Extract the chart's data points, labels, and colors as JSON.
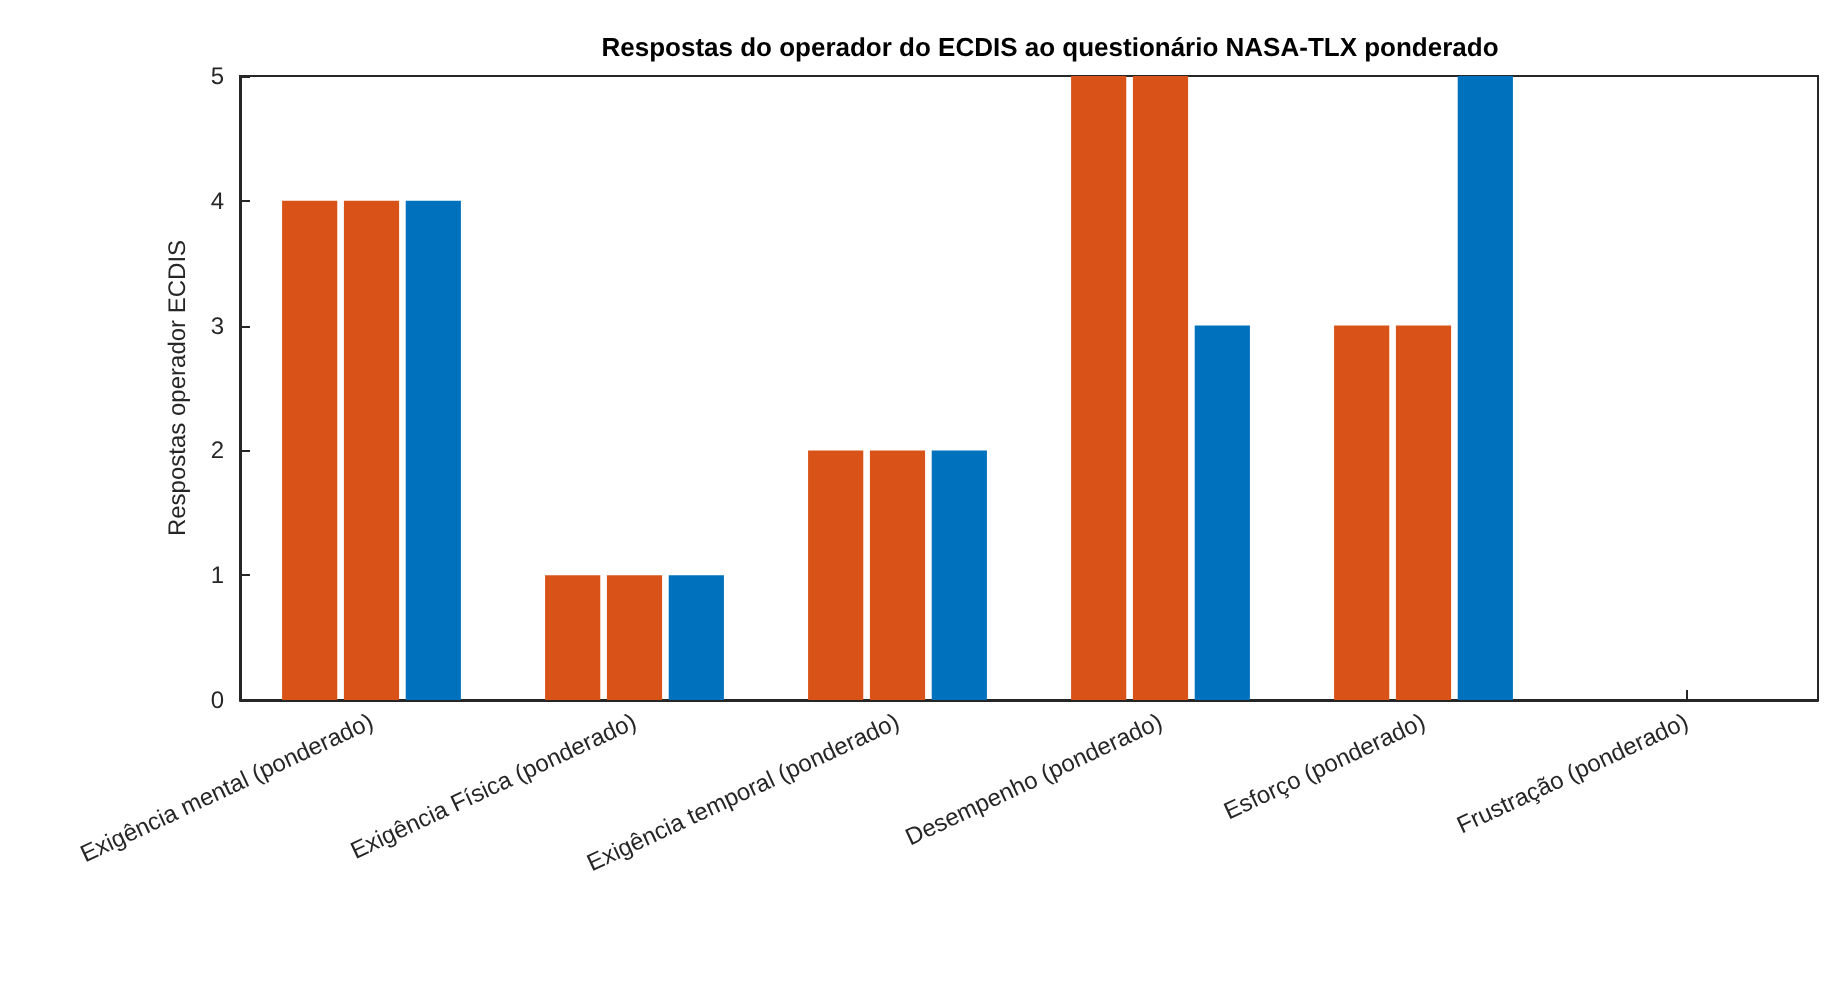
{
  "chart_data": {
    "type": "bar",
    "title": "Respostas do operador do ECDIS ao questionário NASA-TLX ponderado",
    "ylabel": "Respostas operador ECDIS",
    "categories": [
      "Exigência mental (ponderado)",
      "Exigência Física (ponderado)",
      "Exigência temporal (ponderado)",
      "Desempenho (ponderado)",
      "Esforço (ponderado)",
      "Frustração (ponderado)"
    ],
    "series": [
      {
        "color": "#d95319",
        "values": [
          4,
          1,
          2,
          5,
          3,
          0
        ]
      },
      {
        "color": "#d95319",
        "values": [
          4,
          1,
          2,
          5,
          3,
          0
        ]
      },
      {
        "color": "#0072bd",
        "values": [
          4,
          1,
          2,
          3,
          5,
          0
        ]
      }
    ],
    "ylim": [
      0,
      5
    ],
    "yticks": [
      0,
      1,
      2,
      3,
      4,
      5
    ],
    "grid": false
  }
}
